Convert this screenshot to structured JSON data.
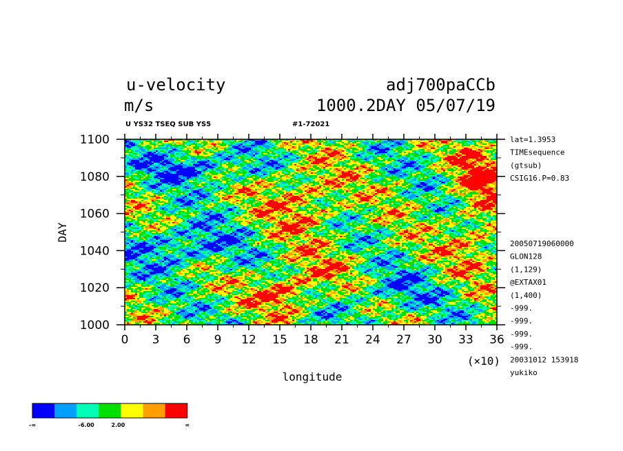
{
  "header": {
    "variable": "u-velocity",
    "units": "m/s",
    "run": "adj700paCCb",
    "time": "1000.2DAY 05/07/19",
    "sub_left": "U YS32 TSEQ SUB YS5",
    "sub_right": "#1-72021"
  },
  "side_info": {
    "top": [
      "lat=1.3953",
      "TIMEsequence",
      "(gtsub)",
      "CSIG16.P=0.83"
    ],
    "bottom": [
      "20050719060000",
      "GLON128",
      "(1,129)",
      "@EXTAX01",
      "(1,400)",
      "-999.",
      "-999.",
      "-999.",
      "-999.",
      "20031012 153918",
      "yukiko"
    ]
  },
  "colorbar": {
    "colors": [
      "#0000ff",
      "#00a0ff",
      "#00ffb4",
      "#00e000",
      "#ffff00",
      "#ffa000",
      "#ff0000"
    ],
    "labels": [
      "-∞",
      "-6.00",
      "2.00",
      "∞"
    ]
  },
  "chart_data": {
    "type": "heatmap",
    "title": "u-velocity",
    "xlabel": "longitude",
    "ylabel": "DAY",
    "x_multiplier": "(×10)",
    "xlim": [
      0,
      36
    ],
    "ylim": [
      1000,
      1100
    ],
    "xticks": [
      "0",
      "3",
      "6",
      "9",
      "12",
      "15",
      "18",
      "21",
      "24",
      "27",
      "30",
      "33",
      "36"
    ],
    "yticks": [
      "1000",
      "1020",
      "1040",
      "1060",
      "1080",
      "1100"
    ],
    "color_levels": [
      "< -6.00",
      "-6.00 to 2.00",
      "> 2.00"
    ],
    "note": "filled contour of u-velocity (m/s) vs longitude and day"
  }
}
